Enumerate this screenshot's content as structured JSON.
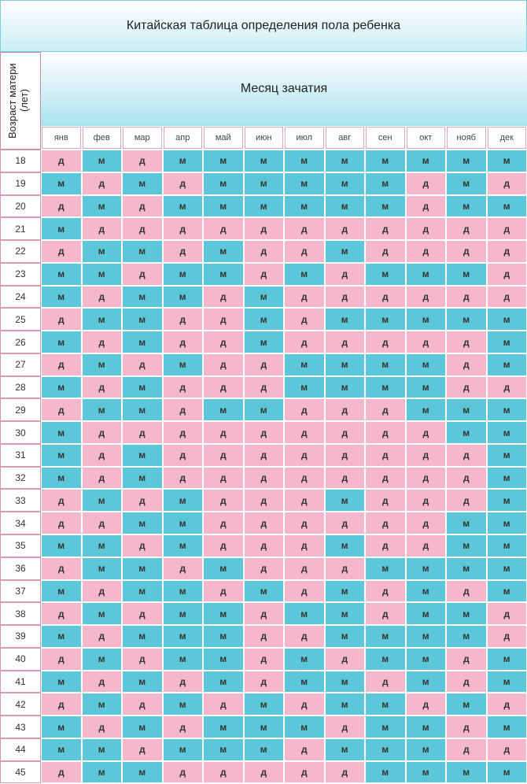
{
  "header": {
    "title": "Китайская таблица определения пола ребенка",
    "column_group": "Месяц зачатия",
    "row_label": "Возраст матери (лет)"
  },
  "cell_colors": {
    "д": "#f5b7cd",
    "м": "#5dc7da"
  },
  "months": [
    "янв",
    "фев",
    "мар",
    "апр",
    "май",
    "июн",
    "июл",
    "авг",
    "сен",
    "окт",
    "нояб",
    "дек"
  ],
  "rows": [
    {
      "age": "18",
      "cells": [
        "д",
        "м",
        "д",
        "м",
        "м",
        "м",
        "м",
        "м",
        "м",
        "м",
        "м",
        "м"
      ]
    },
    {
      "age": "19",
      "cells": [
        "м",
        "д",
        "м",
        "д",
        "м",
        "м",
        "м",
        "м",
        "м",
        "д",
        "м",
        "д"
      ]
    },
    {
      "age": "20",
      "cells": [
        "д",
        "м",
        "д",
        "м",
        "м",
        "м",
        "м",
        "м",
        "м",
        "д",
        "м",
        "м"
      ]
    },
    {
      "age": "21",
      "cells": [
        "м",
        "д",
        "д",
        "д",
        "д",
        "д",
        "д",
        "д",
        "д",
        "д",
        "д",
        "д"
      ]
    },
    {
      "age": "22",
      "cells": [
        "д",
        "м",
        "м",
        "д",
        "м",
        "д",
        "д",
        "м",
        "д",
        "д",
        "д",
        "д"
      ]
    },
    {
      "age": "23",
      "cells": [
        "м",
        "м",
        "д",
        "м",
        "м",
        "д",
        "м",
        "д",
        "м",
        "м",
        "м",
        "д"
      ]
    },
    {
      "age": "24",
      "cells": [
        "м",
        "д",
        "м",
        "м",
        "д",
        "м",
        "д",
        "д",
        "д",
        "д",
        "д",
        "д"
      ]
    },
    {
      "age": "25",
      "cells": [
        "д",
        "м",
        "м",
        "д",
        "д",
        "м",
        "д",
        "м",
        "м",
        "м",
        "м",
        "м"
      ]
    },
    {
      "age": "26",
      "cells": [
        "м",
        "д",
        "м",
        "д",
        "д",
        "м",
        "д",
        "д",
        "д",
        "д",
        "д",
        "м"
      ]
    },
    {
      "age": "27",
      "cells": [
        "д",
        "м",
        "д",
        "м",
        "д",
        "д",
        "м",
        "м",
        "м",
        "м",
        "д",
        "м"
      ]
    },
    {
      "age": "28",
      "cells": [
        "м",
        "д",
        "м",
        "д",
        "д",
        "д",
        "м",
        "м",
        "м",
        "м",
        "д",
        "д"
      ]
    },
    {
      "age": "29",
      "cells": [
        "д",
        "м",
        "м",
        "д",
        "м",
        "м",
        "д",
        "д",
        "д",
        "м",
        "м",
        "м"
      ]
    },
    {
      "age": "30",
      "cells": [
        "м",
        "д",
        "д",
        "д",
        "д",
        "д",
        "д",
        "д",
        "д",
        "д",
        "м",
        "м"
      ]
    },
    {
      "age": "31",
      "cells": [
        "м",
        "д",
        "м",
        "д",
        "д",
        "д",
        "д",
        "д",
        "д",
        "д",
        "д",
        "м"
      ]
    },
    {
      "age": "32",
      "cells": [
        "м",
        "д",
        "м",
        "д",
        "д",
        "д",
        "д",
        "д",
        "д",
        "д",
        "д",
        "м"
      ]
    },
    {
      "age": "33",
      "cells": [
        "д",
        "м",
        "д",
        "м",
        "д",
        "д",
        "д",
        "м",
        "д",
        "д",
        "д",
        "м"
      ]
    },
    {
      "age": "34",
      "cells": [
        "д",
        "д",
        "м",
        "м",
        "д",
        "д",
        "д",
        "д",
        "д",
        "д",
        "м",
        "м"
      ]
    },
    {
      "age": "35",
      "cells": [
        "м",
        "м",
        "д",
        "м",
        "д",
        "д",
        "д",
        "м",
        "д",
        "д",
        "м",
        "м"
      ]
    },
    {
      "age": "36",
      "cells": [
        "д",
        "м",
        "м",
        "д",
        "м",
        "д",
        "д",
        "д",
        "м",
        "м",
        "м",
        "м"
      ]
    },
    {
      "age": "37",
      "cells": [
        "м",
        "д",
        "м",
        "м",
        "д",
        "м",
        "д",
        "м",
        "д",
        "м",
        "д",
        "м"
      ]
    },
    {
      "age": "38",
      "cells": [
        "д",
        "м",
        "д",
        "м",
        "м",
        "д",
        "м",
        "м",
        "д",
        "м",
        "м",
        "д"
      ]
    },
    {
      "age": "39",
      "cells": [
        "м",
        "д",
        "м",
        "м",
        "м",
        "д",
        "д",
        "м",
        "м",
        "м",
        "м",
        "д"
      ]
    },
    {
      "age": "40",
      "cells": [
        "д",
        "м",
        "д",
        "м",
        "м",
        "д",
        "м",
        "д",
        "м",
        "м",
        "д",
        "м"
      ]
    },
    {
      "age": "41",
      "cells": [
        "м",
        "д",
        "м",
        "д",
        "м",
        "д",
        "м",
        "м",
        "д",
        "м",
        "д",
        "м"
      ]
    },
    {
      "age": "42",
      "cells": [
        "д",
        "м",
        "д",
        "м",
        "д",
        "м",
        "д",
        "м",
        "м",
        "д",
        "м",
        "д"
      ]
    },
    {
      "age": "43",
      "cells": [
        "м",
        "д",
        "м",
        "д",
        "м",
        "м",
        "м",
        "д",
        "м",
        "м",
        "д",
        "м"
      ]
    },
    {
      "age": "44",
      "cells": [
        "м",
        "м",
        "д",
        "м",
        "м",
        "м",
        "д",
        "м",
        "м",
        "м",
        "д",
        "д"
      ]
    },
    {
      "age": "45",
      "cells": [
        "д",
        "м",
        "м",
        "д",
        "д",
        "д",
        "д",
        "д",
        "м",
        "м",
        "м",
        "м"
      ]
    }
  ]
}
